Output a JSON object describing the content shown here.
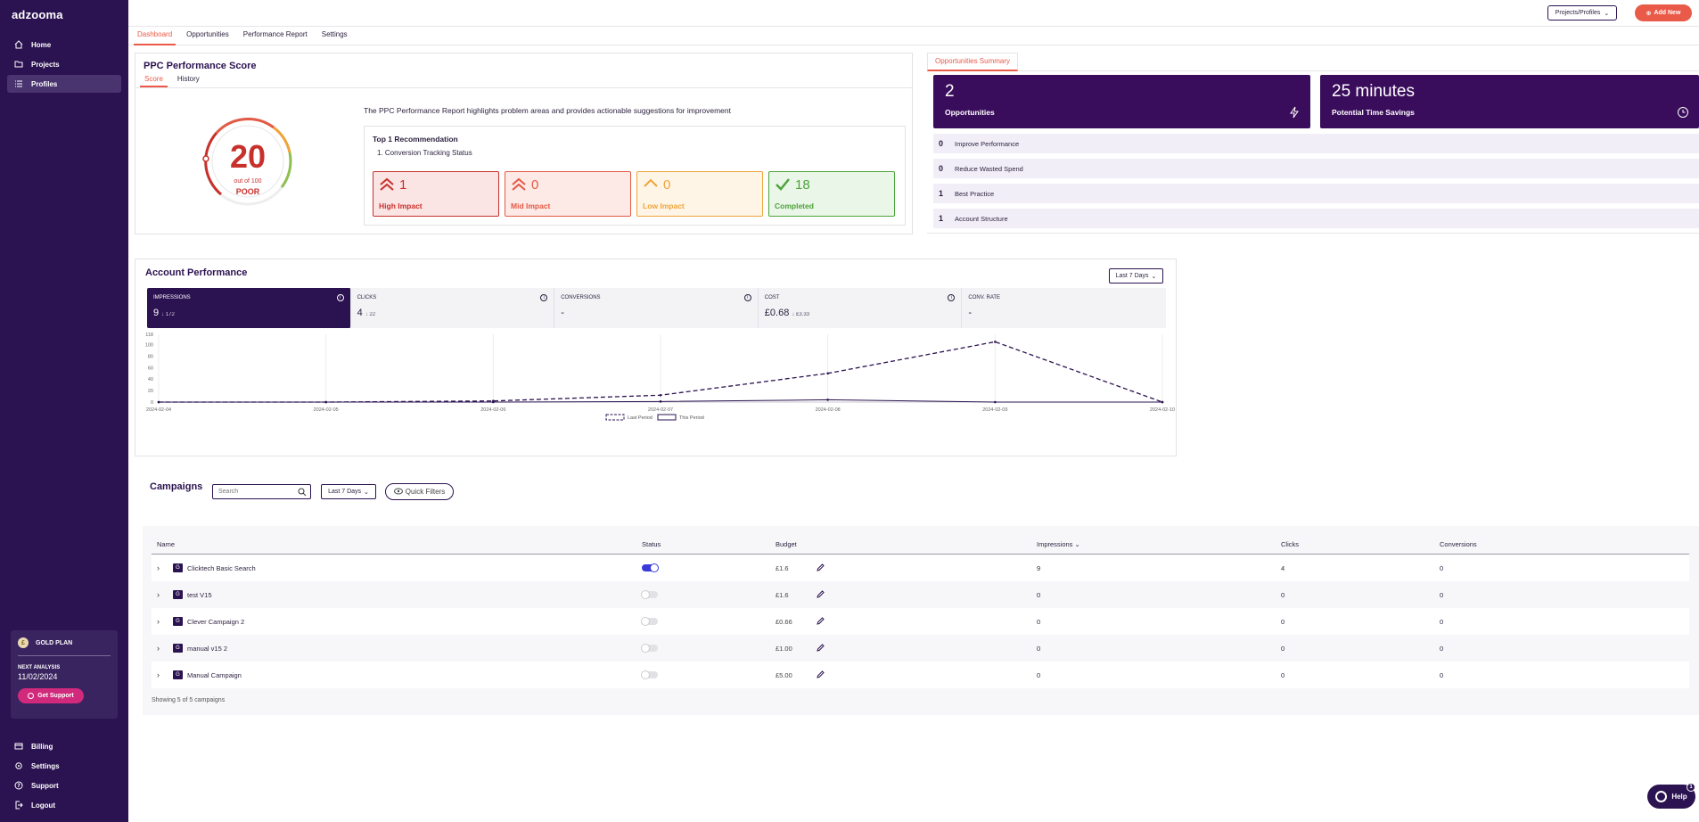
{
  "app": {
    "logo": "adzooma"
  },
  "sidebar": {
    "nav": [
      {
        "label": "Home",
        "icon": "home-icon"
      },
      {
        "label": "Projects",
        "icon": "folder-icon"
      },
      {
        "label": "Profiles",
        "icon": "list-icon",
        "active": true
      }
    ],
    "plan": {
      "name": "GOLD PLAN",
      "next_label": "NEXT ANALYSIS",
      "next_date": "11/02/2024",
      "support_label": "Get Support"
    },
    "bottom_nav": [
      {
        "label": "Billing",
        "icon": "card-icon"
      },
      {
        "label": "Settings",
        "icon": "gear-icon"
      },
      {
        "label": "Support",
        "icon": "question-icon"
      },
      {
        "label": "Logout",
        "icon": "logout-icon"
      }
    ]
  },
  "topbar": {
    "project_select": "Projects/Profiles",
    "add_new": "Add New"
  },
  "tabs": [
    "Dashboard",
    "Opportunities",
    "Performance Report",
    "Settings"
  ],
  "ppc": {
    "title": "PPC Performance Score",
    "subtabs": [
      "Score",
      "History"
    ],
    "score": "20",
    "score_sub": "out of 100",
    "grade": "POOR",
    "description": "The PPC Performance Report highlights problem areas and provides actionable suggestions for improvement",
    "rec_title": "Top 1 Recommendation",
    "rec_item": "1. Conversion Tracking Status",
    "impacts": [
      {
        "count": "1",
        "label": "High Impact"
      },
      {
        "count": "0",
        "label": "Mid Impact"
      },
      {
        "count": "0",
        "label": "Low Impact"
      },
      {
        "count": "18",
        "label": "Completed"
      }
    ]
  },
  "opportunities": {
    "tab": "Opportunities Summary",
    "count": "2",
    "count_label": "Opportunities",
    "time": "25 minutes",
    "time_label": "Potential Time Savings",
    "rows": [
      {
        "n": "0",
        "label": "Improve Performance"
      },
      {
        "n": "0",
        "label": "Reduce Wasted Spend"
      },
      {
        "n": "1",
        "label": "Best Practice"
      },
      {
        "n": "1",
        "label": "Account Structure"
      }
    ]
  },
  "account": {
    "title": "Account Performance",
    "range": "Last 7 Days",
    "metrics": [
      {
        "title": "IMPRESSIONS",
        "value": "9",
        "delta": "↓ 172",
        "info": true
      },
      {
        "title": "CLICKS",
        "value": "4",
        "delta": "↓ 22",
        "info": true
      },
      {
        "title": "CONVERSIONS",
        "value": "-",
        "delta": "",
        "info": true
      },
      {
        "title": "COST",
        "value": "£0.68",
        "delta": "↓ £3.33",
        "info": true
      },
      {
        "title": "CONV. RATE",
        "value": "-",
        "delta": "",
        "info": false
      }
    ]
  },
  "chart_data": {
    "type": "line",
    "x": [
      "2024-02-04",
      "2024-02-05",
      "2024-02-06",
      "2024-02-07",
      "2024-02-08",
      "2024-02-09",
      "2024-02-10"
    ],
    "y_ticks": [
      "118",
      "100",
      "80",
      "60",
      "40",
      "20",
      "0"
    ],
    "ylim": [
      0,
      118
    ],
    "series": [
      {
        "name": "Last Period",
        "style": "dashed",
        "values": [
          0,
          0,
          2,
          12,
          50,
          105,
          0
        ]
      },
      {
        "name": "This Period",
        "style": "solid",
        "values": [
          0,
          0,
          0,
          1,
          4,
          0,
          0
        ]
      }
    ],
    "legend": "bottom"
  },
  "campaigns": {
    "title": "Campaigns",
    "search_placeholder": "Search",
    "range": "Last 7 Days",
    "quick_filters": "Quick Filters",
    "headers": {
      "name": "Name",
      "status": "Status",
      "budget": "Budget",
      "impressions": "Impressions",
      "clicks": "Clicks",
      "conversions": "Conversions"
    },
    "rows": [
      {
        "name": "Clicktech Basic Search",
        "on": true,
        "budget": "£1.6",
        "impressions": "9",
        "clicks": "4",
        "conversions": "0"
      },
      {
        "name": "test V15",
        "on": false,
        "budget": "£1.6",
        "impressions": "0",
        "clicks": "0",
        "conversions": "0"
      },
      {
        "name": "Clever Campaign 2",
        "on": false,
        "budget": "£0.66",
        "impressions": "0",
        "clicks": "0",
        "conversions": "0"
      },
      {
        "name": "manual v15 2",
        "on": false,
        "budget": "£1.00",
        "impressions": "0",
        "clicks": "0",
        "conversions": "0"
      },
      {
        "name": "Manual Campaign",
        "on": false,
        "budget": "£5.00",
        "impressions": "0",
        "clicks": "0",
        "conversions": "0"
      }
    ],
    "showing": "Showing 5 of 5 campaigns"
  },
  "help": {
    "label": "Help",
    "badge": "1"
  }
}
